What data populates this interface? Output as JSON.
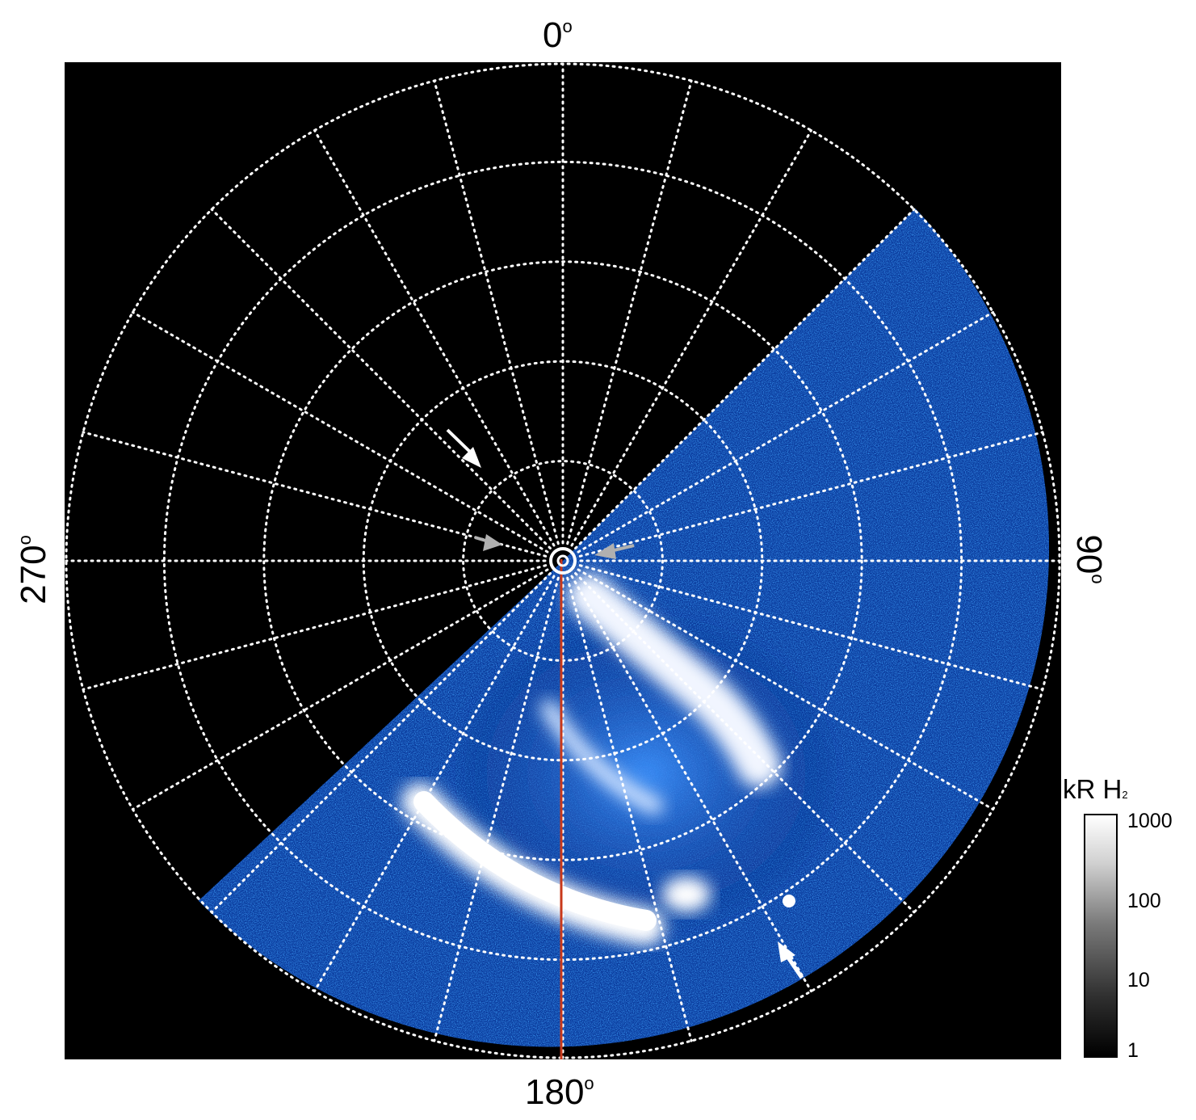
{
  "figure": {
    "axis_labels": {
      "top": "0",
      "right": "90",
      "bottom": "180",
      "left": "270",
      "degree_symbol": "o"
    },
    "colorbar": {
      "title": "kR H",
      "title_subscript": "2",
      "ticks": [
        "1000",
        "100",
        "10",
        "1"
      ],
      "scale": "log",
      "colors": [
        "#000000",
        "#ffffff"
      ]
    },
    "colors": {
      "background": "#000000",
      "grid": "#ffffff",
      "emission": "#1e6fd9",
      "emission_bright": "#ffffff",
      "meridian_line": "#c8381a",
      "arrow_white": "#ffffff",
      "arrow_grey": "#b0b0b0"
    },
    "grid": {
      "latitude_rings": 5,
      "longitude_spokes": 24,
      "style": "dotted"
    }
  }
}
